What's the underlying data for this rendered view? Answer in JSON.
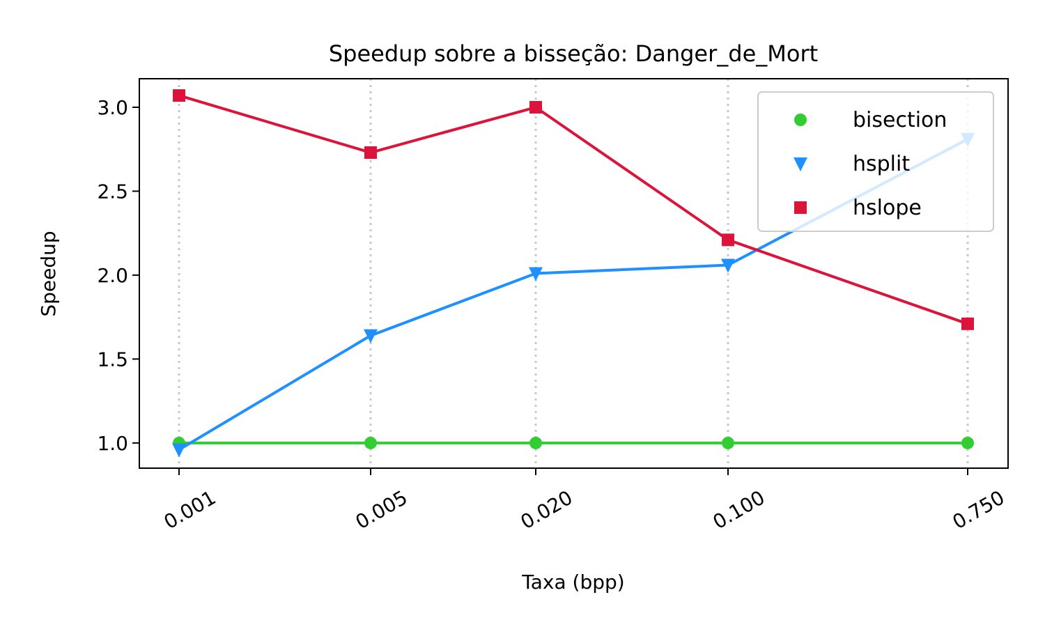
{
  "chart_data": {
    "type": "line",
    "title": "Speedup sobre a bisseção: Danger_de_Mort",
    "xlabel": "Taxa (bpp)",
    "ylabel": "Speedup",
    "categories": [
      "0.001",
      "0.005",
      "0.020",
      "0.100",
      "0.750"
    ],
    "x": [
      0.001,
      0.005,
      0.02,
      0.1,
      0.75
    ],
    "x_scale": "log",
    "ylim": [
      0.85,
      3.17
    ],
    "yticks": [
      "1.0",
      "1.5",
      "2.0",
      "2.5",
      "3.0"
    ],
    "grid": "vertical dotted",
    "legend_position": "upper right",
    "series": [
      {
        "name": "bisection",
        "values": [
          1.0,
          1.0,
          1.0,
          1.0,
          1.0
        ],
        "color": "#32cd32",
        "marker": "circle"
      },
      {
        "name": "hsplit",
        "values": [
          0.96,
          1.64,
          2.01,
          2.06,
          2.81
        ],
        "color": "#1e90ff",
        "marker": "triangle-down"
      },
      {
        "name": "hslope",
        "values": [
          3.07,
          2.73,
          3.0,
          2.21,
          1.71
        ],
        "color": "#dc143c",
        "marker": "square"
      }
    ]
  }
}
